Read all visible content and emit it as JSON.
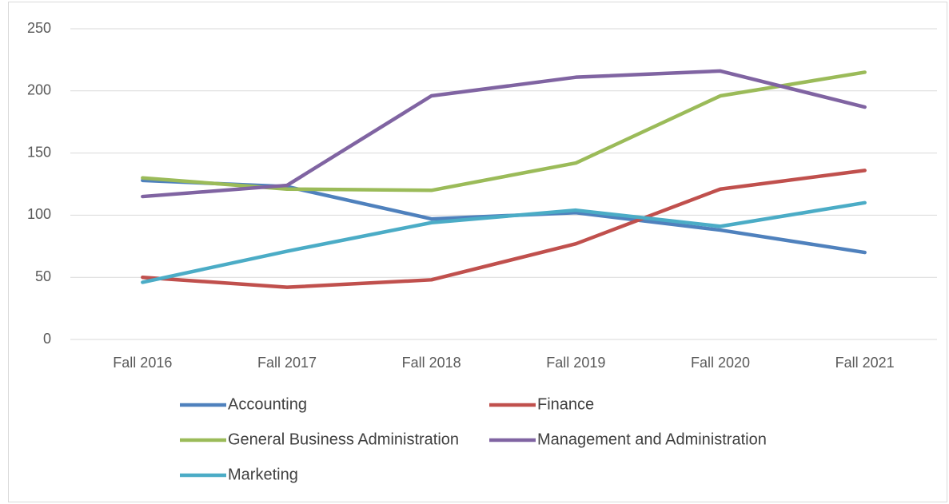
{
  "chart_data": {
    "type": "line",
    "categories": [
      "Fall 2016",
      "Fall 2017",
      "Fall 2018",
      "Fall 2019",
      "Fall 2020",
      "Fall 2021"
    ],
    "series": [
      {
        "name": "Accounting",
        "color": "#4f81bd",
        "values": [
          128,
          123,
          97,
          102,
          88,
          70
        ]
      },
      {
        "name": "Finance",
        "color": "#c0504d",
        "values": [
          50,
          42,
          48,
          77,
          121,
          136
        ]
      },
      {
        "name": "General Business Administration",
        "color": "#9bbb59",
        "values": [
          130,
          121,
          120,
          142,
          196,
          215
        ]
      },
      {
        "name": "Management and Administration",
        "color": "#8064a2",
        "values": [
          115,
          124,
          196,
          211,
          216,
          187
        ]
      },
      {
        "name": "Marketing",
        "color": "#4bacc6",
        "values": [
          46,
          71,
          94,
          104,
          91,
          110
        ]
      }
    ],
    "ylim": [
      0,
      250
    ],
    "yticks": [
      0,
      50,
      100,
      150,
      200,
      250
    ],
    "grid": true,
    "legend": "bottom"
  }
}
